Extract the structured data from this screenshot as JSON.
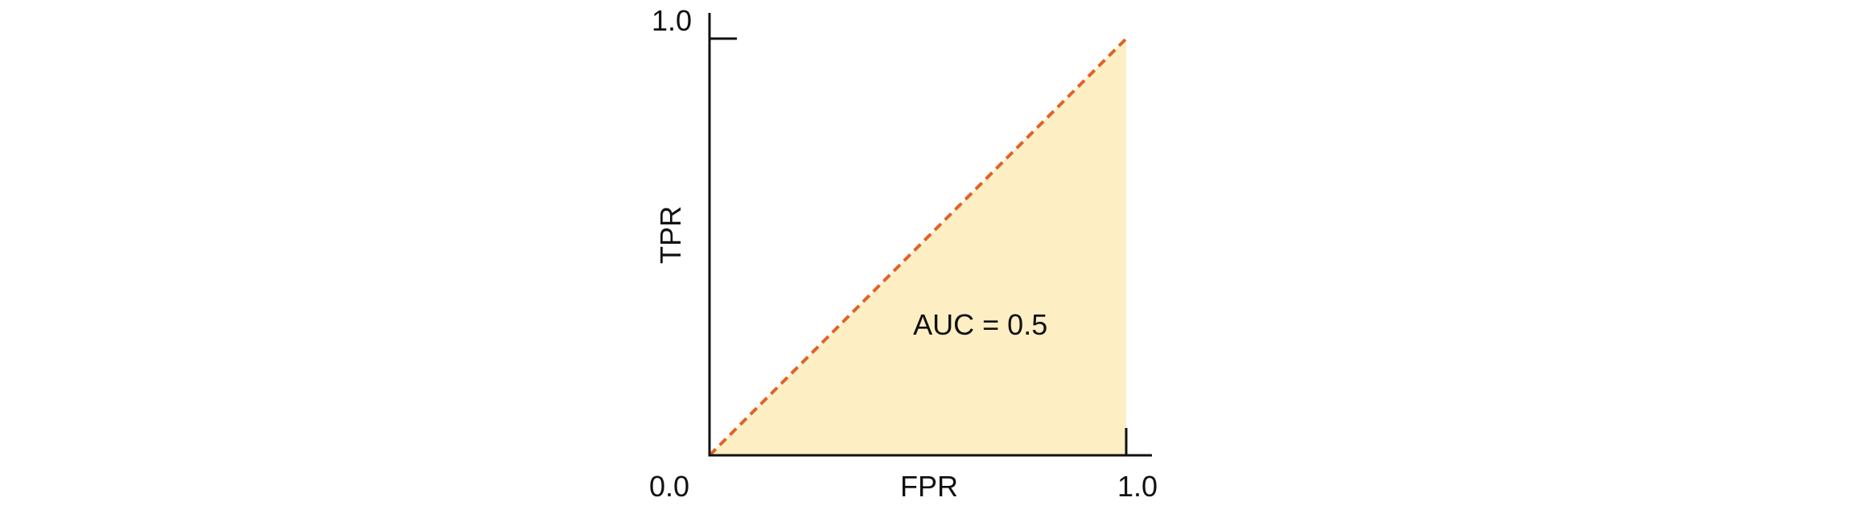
{
  "chart_data": {
    "type": "area",
    "title": "",
    "xlabel": "FPR",
    "ylabel": "TPR",
    "xlim": [
      0.0,
      1.0
    ],
    "ylim": [
      0.0,
      1.0
    ],
    "x_tick_labels": [
      "0.0",
      "1.0"
    ],
    "y_tick_labels": [
      "1.0"
    ],
    "grid": false,
    "series": [
      {
        "style": "dashed",
        "x": [
          0.0,
          1.0
        ],
        "y": [
          0.0,
          1.0
        ],
        "fill_under": true
      }
    ],
    "annotations": [
      {
        "text": "AUC = 0.5",
        "x": 0.65,
        "y": 0.29
      }
    ],
    "colors": {
      "line": "#e0622a",
      "fill": "#fdefc3",
      "axis": "#111111"
    }
  }
}
